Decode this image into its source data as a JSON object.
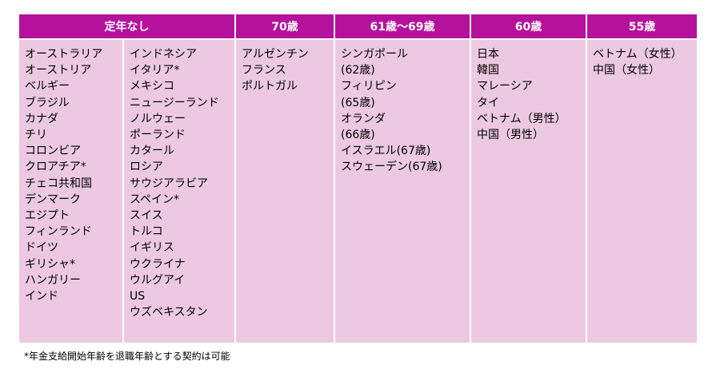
{
  "headers": [
    "定年なし",
    "70歳",
    "61歳～69歳",
    "60歳",
    "55歳"
  ],
  "columns": {
    "none_a": [
      "オーストラリア",
      "オーストリア",
      "ベルギー",
      "ブラジル",
      "カナダ",
      "チリ",
      "コロンビア",
      "クロアチア*",
      "チェコ共和国",
      "デンマーク",
      "エジプト",
      "フィンランド",
      "ドイツ",
      "ギリシャ*",
      "ハンガリー",
      "インド"
    ],
    "none_b": [
      "インドネシア",
      "イタリア*",
      "メキシコ",
      "ニュージーランド",
      "ノルウェー",
      "ポーランド",
      "カタール",
      "ロシア",
      "サウジアラビア",
      "スペイン*",
      "スイス",
      "トルコ",
      "イギリス",
      "ウクライナ",
      "ウルグアイ",
      "US",
      "ウズベキスタン"
    ],
    "age70": [
      "アルゼンチン",
      "フランス",
      "ポルトガル"
    ],
    "age61_69": [
      "シンガポール",
      "(62歳)",
      "フィリピン",
      "(65歳)",
      "オランダ",
      "(66歳)",
      "イスラエル(67歳)",
      "スウェーデン(67歳)"
    ],
    "age60": [
      "日本",
      "韓国",
      "マレーシア",
      "タイ",
      "ベトナム（男性）",
      "中国（男性）"
    ],
    "age55": [
      "ベトナム（女性）",
      "中国（女性）"
    ]
  },
  "footnote": "*年金支給開始年齢を退職年齢とする契約は可能"
}
